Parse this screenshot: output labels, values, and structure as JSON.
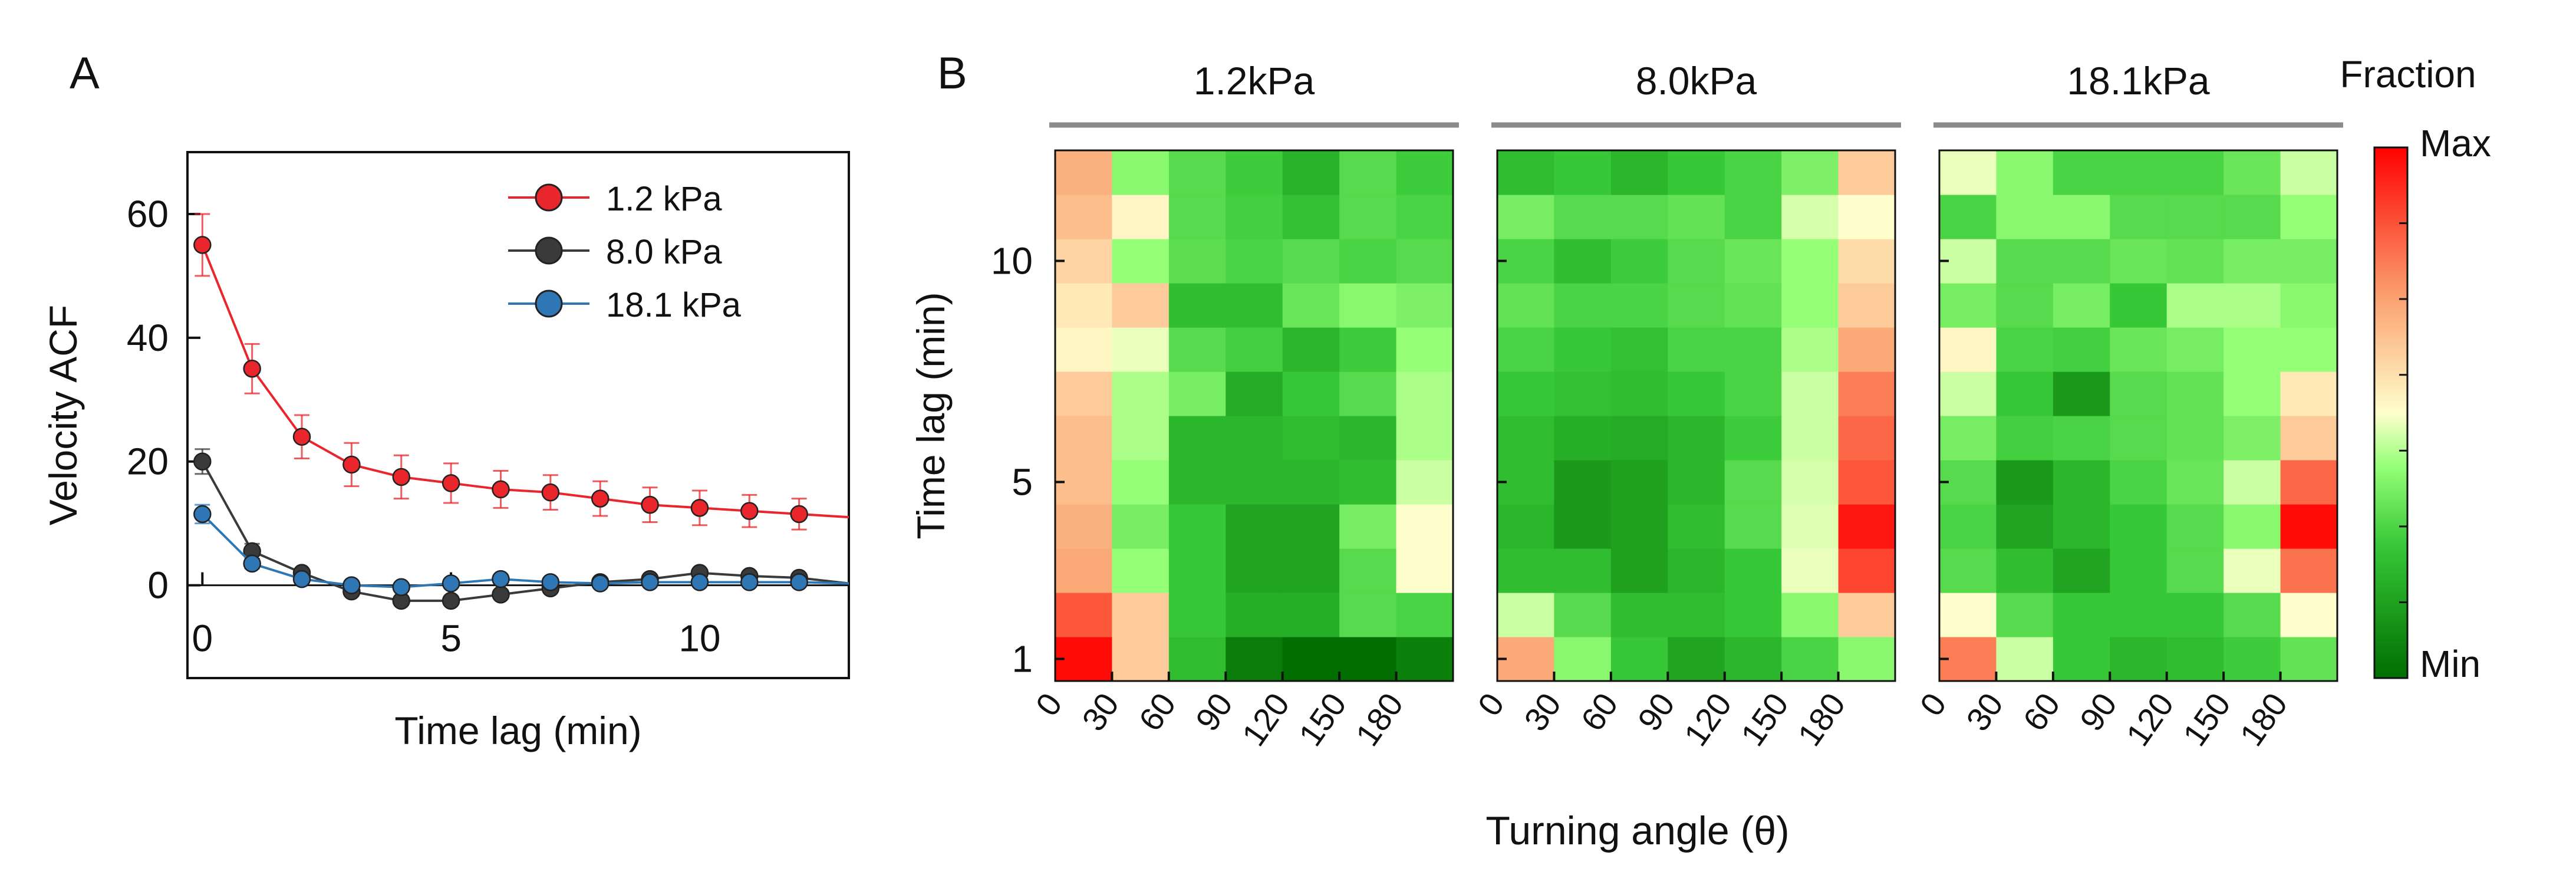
{
  "panel_a": {
    "label": "A",
    "chart_data": {
      "type": "line",
      "xlabel": "Time lag (min)",
      "ylabel": "Velocity ACF",
      "xlim": [
        -0.3,
        13
      ],
      "ylim": [
        -15,
        70
      ],
      "xticks": [
        0,
        5,
        10
      ],
      "xtick_labels": [
        "0",
        "5",
        "10"
      ],
      "yticks": [
        0,
        20,
        40,
        60
      ],
      "ytick_labels": [
        "0",
        "20",
        "40",
        "60"
      ],
      "x": [
        0,
        1,
        2,
        3,
        4,
        5,
        6,
        7,
        8,
        9,
        10,
        11,
        12
      ],
      "series": [
        {
          "name": "1.2 kPa",
          "color": "#e8262b",
          "values": [
            55,
            35,
            24,
            19.5,
            17.5,
            16.5,
            15.5,
            15,
            14,
            13,
            12.5,
            12,
            11.5
          ],
          "end_value": 11,
          "errors": [
            5,
            4,
            3.5,
            3.5,
            3.5,
            3.2,
            3,
            2.8,
            2.8,
            2.8,
            2.8,
            2.6,
            2.5
          ]
        },
        {
          "name": "8.0 kPa",
          "color": "#3a3a3a",
          "values": [
            20,
            5.5,
            2,
            -1,
            -2.5,
            -2.5,
            -1.5,
            -0.5,
            0.5,
            1,
            2,
            1.5,
            1.2
          ],
          "end_value": 0.3,
          "errors": [
            2,
            1.2,
            0.6,
            0.4,
            0.4,
            0.4,
            0.4,
            0.3,
            0.3,
            0.3,
            0.3,
            0.3,
            0.3
          ]
        },
        {
          "name": "18.1 kPa",
          "color": "#2f77b4",
          "values": [
            11.5,
            3.5,
            1,
            0,
            -0.3,
            0.3,
            1,
            0.5,
            0.3,
            0.5,
            0.5,
            0.5,
            0.5
          ],
          "end_value": 0.3,
          "errors": [
            1.5,
            0.8,
            0.4,
            0.3,
            0.3,
            0.3,
            0.3,
            0.3,
            0.3,
            0.3,
            0.3,
            0.3,
            0.3
          ]
        }
      ],
      "legend": [
        "1.2 kPa",
        "8.0 kPa",
        "18.1 kPa"
      ],
      "legend_position": "top-right"
    }
  },
  "panel_b": {
    "label": "B",
    "chart_data": {
      "type": "heatmap",
      "xlabel": "Turning angle (θ)",
      "ylabel": "Time lag (min)",
      "x_tick_labels": [
        "0",
        "30",
        "60",
        "90",
        "120",
        "150",
        "180"
      ],
      "y_tick_labels": [
        "10",
        "5",
        "1"
      ],
      "y_tick_rows": [
        10,
        5,
        1
      ],
      "rows": 12,
      "cols": 7,
      "row_order": "row 1 = bottom (time lag 1) ... row 12 = top (time lag 12)",
      "scale": "fraction normalized, 0 = Min (dark green), 0.5 = mid (pale yellow), 1 = Max (red)",
      "colorbar": {
        "title": "Fraction",
        "max_label": "Max",
        "min_label": "Min"
      },
      "panels": [
        {
          "title": "1.2kPa",
          "values": [
            [
              0.98,
              0.62,
              0.22,
              0.04,
              0.0,
              0.0,
              0.05
            ],
            [
              0.85,
              0.62,
              0.25,
              0.18,
              0.18,
              0.3,
              0.28
            ],
            [
              0.7,
              0.4,
              0.25,
              0.15,
              0.15,
              0.3,
              0.5
            ],
            [
              0.68,
              0.35,
              0.25,
              0.15,
              0.15,
              0.35,
              0.5
            ],
            [
              0.65,
              0.4,
              0.2,
              0.2,
              0.2,
              0.22,
              0.45
            ],
            [
              0.65,
              0.42,
              0.2,
              0.2,
              0.22,
              0.2,
              0.42
            ],
            [
              0.62,
              0.42,
              0.35,
              0.17,
              0.25,
              0.3,
              0.42
            ],
            [
              0.52,
              0.48,
              0.3,
              0.27,
              0.2,
              0.26,
              0.4
            ],
            [
              0.55,
              0.62,
              0.22,
              0.22,
              0.33,
              0.38,
              0.36
            ],
            [
              0.6,
              0.4,
              0.31,
              0.28,
              0.3,
              0.28,
              0.3
            ],
            [
              0.65,
              0.52,
              0.3,
              0.27,
              0.23,
              0.3,
              0.28
            ],
            [
              0.68,
              0.38,
              0.3,
              0.26,
              0.19,
              0.3,
              0.26
            ]
          ]
        },
        {
          "title": "8.0kPa",
          "values": [
            [
              0.7,
              0.38,
              0.25,
              0.15,
              0.2,
              0.28,
              0.38
            ],
            [
              0.45,
              0.3,
              0.22,
              0.22,
              0.25,
              0.38,
              0.62
            ],
            [
              0.22,
              0.22,
              0.14,
              0.2,
              0.25,
              0.48,
              0.88
            ],
            [
              0.2,
              0.12,
              0.14,
              0.22,
              0.3,
              0.47,
              0.96
            ],
            [
              0.22,
              0.12,
              0.14,
              0.2,
              0.3,
              0.46,
              0.85
            ],
            [
              0.22,
              0.18,
              0.17,
              0.2,
              0.26,
              0.45,
              0.82
            ],
            [
              0.25,
              0.23,
              0.22,
              0.25,
              0.28,
              0.45,
              0.78
            ],
            [
              0.28,
              0.25,
              0.23,
              0.28,
              0.28,
              0.42,
              0.7
            ],
            [
              0.32,
              0.28,
              0.28,
              0.3,
              0.32,
              0.4,
              0.62
            ],
            [
              0.28,
              0.22,
              0.26,
              0.3,
              0.33,
              0.4,
              0.58
            ],
            [
              0.35,
              0.3,
              0.3,
              0.32,
              0.28,
              0.46,
              0.5
            ],
            [
              0.22,
              0.25,
              0.2,
              0.25,
              0.28,
              0.36,
              0.62
            ]
          ]
        },
        {
          "title": "18.1kPa",
          "values": [
            [
              0.78,
              0.45,
              0.25,
              0.2,
              0.22,
              0.26,
              0.32
            ],
            [
              0.5,
              0.3,
              0.25,
              0.25,
              0.25,
              0.3,
              0.5
            ],
            [
              0.3,
              0.22,
              0.15,
              0.25,
              0.3,
              0.48,
              0.8
            ],
            [
              0.28,
              0.15,
              0.2,
              0.25,
              0.3,
              0.38,
              0.98
            ],
            [
              0.3,
              0.12,
              0.2,
              0.28,
              0.33,
              0.45,
              0.82
            ],
            [
              0.35,
              0.27,
              0.28,
              0.3,
              0.32,
              0.36,
              0.62
            ],
            [
              0.45,
              0.25,
              0.12,
              0.3,
              0.32,
              0.4,
              0.55
            ],
            [
              0.52,
              0.28,
              0.27,
              0.33,
              0.35,
              0.4,
              0.4
            ],
            [
              0.35,
              0.3,
              0.35,
              0.25,
              0.42,
              0.42,
              0.38
            ],
            [
              0.45,
              0.3,
              0.3,
              0.33,
              0.32,
              0.35,
              0.35
            ],
            [
              0.28,
              0.38,
              0.38,
              0.3,
              0.3,
              0.3,
              0.4
            ],
            [
              0.48,
              0.38,
              0.28,
              0.28,
              0.28,
              0.33,
              0.45
            ]
          ]
        }
      ]
    }
  }
}
